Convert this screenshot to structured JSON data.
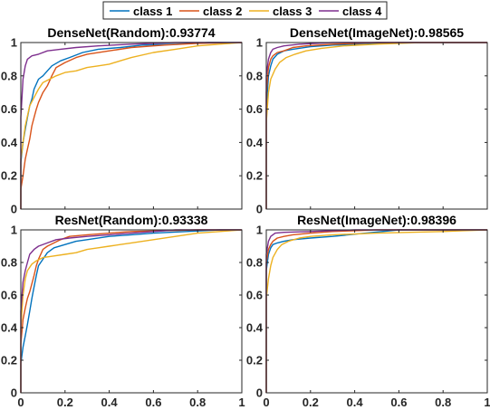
{
  "chart_data": [
    {
      "type": "line",
      "title": "DenseNet(Random):0.93774",
      "xlim": [
        0,
        1
      ],
      "ylim": [
        0,
        1
      ],
      "xticks": [
        "0",
        "0.2",
        "0.4",
        "0.6",
        "0.8",
        "1"
      ],
      "yticks": [
        "0",
        "0.2",
        "0.4",
        "0.6",
        "0.8",
        "1"
      ],
      "series": [
        {
          "name": "class 1",
          "x": [
            0,
            0,
            0.01,
            0.02,
            0.03,
            0.04,
            0.05,
            0.06,
            0.08,
            0.1,
            0.14,
            0.18,
            0.22,
            0.28,
            0.35,
            0.45,
            0.55,
            0.7,
            0.85,
            1
          ],
          "y": [
            0,
            0.28,
            0.4,
            0.48,
            0.55,
            0.62,
            0.66,
            0.72,
            0.78,
            0.8,
            0.86,
            0.89,
            0.91,
            0.94,
            0.96,
            0.97,
            0.985,
            0.99,
            1,
            1
          ]
        },
        {
          "name": "class 2",
          "x": [
            0,
            0,
            0.01,
            0.02,
            0.03,
            0.04,
            0.05,
            0.06,
            0.07,
            0.08,
            0.1,
            0.12,
            0.14,
            0.16,
            0.2,
            0.25,
            0.3,
            0.4,
            0.5,
            0.65,
            0.8,
            1
          ],
          "y": [
            0,
            0.12,
            0.2,
            0.3,
            0.36,
            0.42,
            0.5,
            0.55,
            0.6,
            0.64,
            0.7,
            0.74,
            0.8,
            0.85,
            0.88,
            0.91,
            0.93,
            0.95,
            0.97,
            0.985,
            0.995,
            1
          ]
        },
        {
          "name": "class 3",
          "x": [
            0,
            0,
            0.01,
            0.02,
            0.04,
            0.06,
            0.08,
            0.1,
            0.13,
            0.16,
            0.2,
            0.25,
            0.3,
            0.35,
            0.4,
            0.45,
            0.5,
            0.6,
            0.7,
            0.8,
            0.9,
            1
          ],
          "y": [
            0,
            0.3,
            0.4,
            0.5,
            0.62,
            0.67,
            0.72,
            0.76,
            0.78,
            0.8,
            0.82,
            0.83,
            0.85,
            0.86,
            0.87,
            0.89,
            0.91,
            0.94,
            0.96,
            0.98,
            0.99,
            1
          ]
        },
        {
          "name": "class 4",
          "x": [
            0,
            0,
            0.01,
            0.02,
            0.03,
            0.05,
            0.08,
            0.12,
            0.18,
            0.25,
            0.35,
            0.5,
            0.7,
            1
          ],
          "y": [
            0,
            0.55,
            0.78,
            0.86,
            0.9,
            0.92,
            0.93,
            0.95,
            0.96,
            0.97,
            0.98,
            0.99,
            1,
            1
          ]
        }
      ]
    },
    {
      "type": "line",
      "title": "DenseNet(ImageNet):0.98565",
      "xlim": [
        0,
        1
      ],
      "ylim": [
        0,
        1
      ],
      "xticks": [
        "0",
        "0.2",
        "0.4",
        "0.6",
        "0.8",
        "1"
      ],
      "yticks": [
        "0",
        "0.2",
        "0.4",
        "0.6",
        "0.8",
        "1"
      ],
      "series": [
        {
          "name": "class 1",
          "x": [
            0,
            0,
            0.01,
            0.02,
            0.03,
            0.05,
            0.08,
            0.12,
            0.2,
            0.3,
            0.45,
            0.6,
            1
          ],
          "y": [
            0,
            0.6,
            0.8,
            0.86,
            0.9,
            0.93,
            0.95,
            0.96,
            0.975,
            0.985,
            0.99,
            1,
            1
          ]
        },
        {
          "name": "class 2",
          "x": [
            0,
            0,
            0.01,
            0.02,
            0.03,
            0.05,
            0.08,
            0.12,
            0.18,
            0.3,
            0.5,
            1
          ],
          "y": [
            0,
            0.7,
            0.85,
            0.9,
            0.92,
            0.94,
            0.95,
            0.97,
            0.98,
            0.99,
            1,
            1
          ]
        },
        {
          "name": "class 3",
          "x": [
            0,
            0,
            0.01,
            0.02,
            0.04,
            0.06,
            0.09,
            0.13,
            0.18,
            0.25,
            0.35,
            0.5,
            0.7,
            1
          ],
          "y": [
            0,
            0.52,
            0.7,
            0.78,
            0.84,
            0.88,
            0.91,
            0.93,
            0.95,
            0.965,
            0.98,
            0.99,
            1,
            1
          ]
        },
        {
          "name": "class 4",
          "x": [
            0,
            0,
            0.01,
            0.02,
            0.03,
            0.05,
            0.08,
            0.15,
            0.3,
            1
          ],
          "y": [
            0,
            0.8,
            0.9,
            0.94,
            0.96,
            0.97,
            0.98,
            0.99,
            1,
            1
          ]
        }
      ]
    },
    {
      "type": "line",
      "title": "ResNet(Random):0.93338",
      "xlim": [
        0,
        1
      ],
      "ylim": [
        0,
        1
      ],
      "xticks": [
        "0",
        "0.2",
        "0.4",
        "0.6",
        "0.8",
        "1"
      ],
      "yticks": [
        "0",
        "0.2",
        "0.4",
        "0.6",
        "0.8",
        "1"
      ],
      "series": [
        {
          "name": "class 1",
          "x": [
            0,
            0,
            0.01,
            0.02,
            0.03,
            0.04,
            0.05,
            0.06,
            0.07,
            0.08,
            0.1,
            0.12,
            0.15,
            0.2,
            0.25,
            0.3,
            0.4,
            0.5,
            0.6,
            0.75,
            0.9,
            1
          ],
          "y": [
            0,
            0.18,
            0.28,
            0.35,
            0.42,
            0.5,
            0.58,
            0.65,
            0.72,
            0.78,
            0.82,
            0.86,
            0.89,
            0.91,
            0.93,
            0.94,
            0.96,
            0.97,
            0.98,
            0.99,
            1,
            1
          ]
        },
        {
          "name": "class 2",
          "x": [
            0,
            0,
            0.01,
            0.02,
            0.03,
            0.04,
            0.05,
            0.06,
            0.07,
            0.08,
            0.1,
            0.12,
            0.15,
            0.18,
            0.22,
            0.3,
            0.4,
            0.5,
            0.65,
            0.8,
            1
          ],
          "y": [
            0,
            0.3,
            0.45,
            0.52,
            0.58,
            0.62,
            0.67,
            0.72,
            0.78,
            0.82,
            0.88,
            0.9,
            0.92,
            0.94,
            0.96,
            0.97,
            0.98,
            0.99,
            0.995,
            1,
            1
          ]
        },
        {
          "name": "class 3",
          "x": [
            0,
            0,
            0.01,
            0.02,
            0.03,
            0.05,
            0.07,
            0.1,
            0.15,
            0.2,
            0.25,
            0.3,
            0.35,
            0.4,
            0.45,
            0.5,
            0.6,
            0.7,
            0.8,
            0.9,
            1
          ],
          "y": [
            0,
            0.4,
            0.6,
            0.7,
            0.75,
            0.79,
            0.81,
            0.83,
            0.84,
            0.85,
            0.86,
            0.88,
            0.89,
            0.9,
            0.91,
            0.92,
            0.94,
            0.96,
            0.98,
            0.99,
            1
          ]
        },
        {
          "name": "class 4",
          "x": [
            0,
            0,
            0.01,
            0.02,
            0.03,
            0.04,
            0.06,
            0.08,
            0.12,
            0.16,
            0.22,
            0.3,
            0.4,
            0.55,
            0.7,
            1
          ],
          "y": [
            0,
            0.5,
            0.68,
            0.75,
            0.8,
            0.85,
            0.88,
            0.9,
            0.92,
            0.94,
            0.95,
            0.96,
            0.97,
            0.985,
            1,
            1
          ]
        }
      ]
    },
    {
      "type": "line",
      "title": "ResNet(ImageNet):0.98396",
      "xlim": [
        0,
        1
      ],
      "ylim": [
        0,
        1
      ],
      "xticks": [
        "0",
        "0.2",
        "0.4",
        "0.6",
        "0.8",
        "1"
      ],
      "yticks": [
        "0",
        "0.2",
        "0.4",
        "0.6",
        "0.8",
        "1"
      ],
      "series": [
        {
          "name": "class 1",
          "x": [
            0,
            0,
            0.01,
            0.02,
            0.03,
            0.05,
            0.08,
            0.12,
            0.2,
            0.3,
            0.45,
            0.6,
            1
          ],
          "y": [
            0,
            0.75,
            0.85,
            0.89,
            0.91,
            0.92,
            0.93,
            0.94,
            0.95,
            0.96,
            0.98,
            1,
            1
          ]
        },
        {
          "name": "class 2",
          "x": [
            0,
            0,
            0.01,
            0.02,
            0.03,
            0.05,
            0.08,
            0.12,
            0.2,
            0.3,
            0.5,
            1
          ],
          "y": [
            0,
            0.8,
            0.88,
            0.91,
            0.93,
            0.95,
            0.96,
            0.97,
            0.98,
            0.99,
            1,
            1
          ]
        },
        {
          "name": "class 3",
          "x": [
            0,
            0,
            0.01,
            0.02,
            0.03,
            0.05,
            0.07,
            0.1,
            0.15,
            0.2,
            0.3,
            0.5,
            0.8,
            1
          ],
          "y": [
            0,
            0.58,
            0.7,
            0.78,
            0.83,
            0.88,
            0.91,
            0.93,
            0.95,
            0.96,
            0.97,
            0.98,
            0.99,
            1
          ]
        },
        {
          "name": "class 4",
          "x": [
            0,
            0,
            0.01,
            0.02,
            0.04,
            0.08,
            0.2,
            0.4,
            1
          ],
          "y": [
            0,
            0.85,
            0.93,
            0.96,
            0.98,
            0.985,
            0.99,
            1,
            1
          ]
        }
      ]
    }
  ],
  "legend": {
    "placement": "top-center",
    "items": [
      {
        "label": "class 1",
        "color": "#0072BD"
      },
      {
        "label": "class 2",
        "color": "#D95319"
      },
      {
        "label": "class 3",
        "color": "#EDB120"
      },
      {
        "label": "class 4",
        "color": "#7E2F8E"
      }
    ]
  },
  "colors": {
    "axis": "#262626",
    "box": "#262626"
  }
}
